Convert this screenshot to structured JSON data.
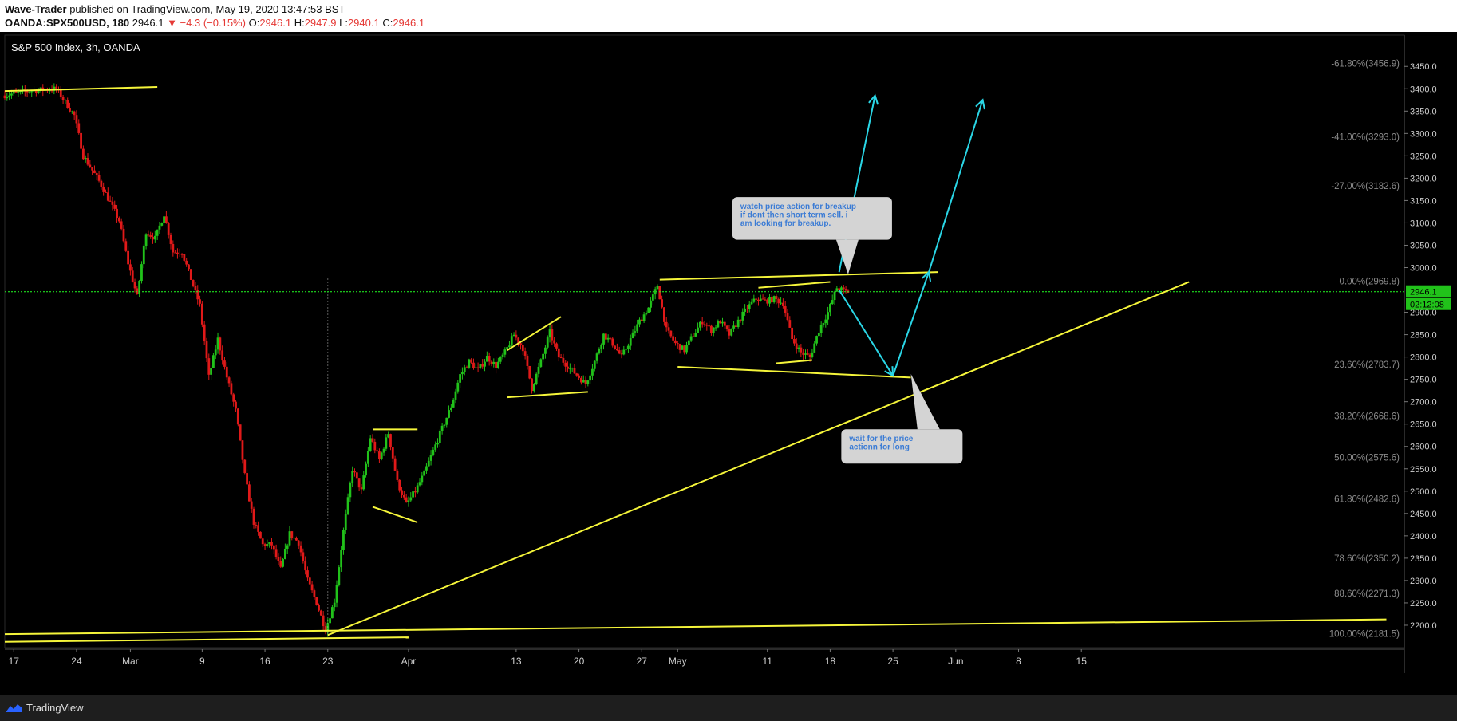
{
  "header": {
    "author": "Wave-Trader",
    "published_text": "published on TradingView.com, May 19, 2020 13:47:53 BST",
    "symbol": "OANDA:SPX500USD, 180",
    "last": "2946.1",
    "change": "▼ −4.3 (−0.15%)",
    "o_label": "O:",
    "o": "2946.1",
    "h_label": "H:",
    "h": "2947.9",
    "l_label": "L:",
    "l": "2940.1",
    "c_label": "C:",
    "c": "2946.1"
  },
  "footer": {
    "brand": "TradingView"
  },
  "colors": {
    "up": "#21c21a",
    "down": "#e01919",
    "lines": "#f5f53a",
    "arrows": "#2ad6e6",
    "price": "#22ff22"
  },
  "chart_data": {
    "type": "candlestick",
    "title": "S&P 500 Index, 3h, OANDA",
    "ylim": [
      2150,
      3520
    ],
    "y_ticks": [
      2200,
      2250,
      2300,
      2350,
      2400,
      2450,
      2500,
      2550,
      2600,
      2650,
      2700,
      2750,
      2800,
      2850,
      2900,
      2950,
      3000,
      3050,
      3100,
      3150,
      3200,
      3250,
      3300,
      3350,
      3400,
      3450
    ],
    "y_tick_labels": [
      "2200.0",
      "2250.0",
      "2300.0",
      "2350.0",
      "2400.0",
      "2450.0",
      "2500.0",
      "2550.0",
      "2600.0",
      "2650.0",
      "2700.0",
      "2750.0",
      "2800.0",
      "2850.0",
      "2900.0",
      "2950.0",
      "3000.0",
      "3050.0",
      "3100.0",
      "3150.0",
      "3200.0",
      "3250.0",
      "3300.0",
      "3350.0",
      "3400.0",
      "3450.0"
    ],
    "x_ticks": [
      {
        "label": "17",
        "day": -5
      },
      {
        "label": "24",
        "day": 2
      },
      {
        "label": "Mar",
        "day": 8
      },
      {
        "label": "9",
        "day": 16
      },
      {
        "label": "16",
        "day": 23
      },
      {
        "label": "23",
        "day": 30
      },
      {
        "label": "Apr",
        "day": 39
      },
      {
        "label": "13",
        "day": 51
      },
      {
        "label": "20",
        "day": 58
      },
      {
        "label": "27",
        "day": 65
      },
      {
        "label": "May",
        "day": 69
      },
      {
        "label": "11",
        "day": 79
      },
      {
        "label": "18",
        "day": 86
      },
      {
        "label": "25",
        "day": 93
      },
      {
        "label": "Jun",
        "day": 100
      },
      {
        "label": "8",
        "day": 107
      },
      {
        "label": "15",
        "day": 114
      }
    ],
    "price_path": [
      [
        -6,
        3385
      ],
      [
        -3,
        3395
      ],
      [
        0,
        3400
      ],
      [
        2,
        3340
      ],
      [
        3,
        3250
      ],
      [
        5,
        3185
      ],
      [
        7,
        3105
      ],
      [
        8,
        3010
      ],
      [
        9,
        2935
      ],
      [
        10,
        3080
      ],
      [
        11,
        3065
      ],
      [
        12,
        3120
      ],
      [
        13,
        3035
      ],
      [
        14,
        3035
      ],
      [
        15,
        2975
      ],
      [
        16,
        2915
      ],
      [
        17,
        2755
      ],
      [
        18,
        2840
      ],
      [
        19,
        2755
      ],
      [
        20,
        2680
      ],
      [
        21,
        2535
      ],
      [
        22,
        2430
      ],
      [
        23,
        2380
      ],
      [
        24,
        2380
      ],
      [
        25,
        2325
      ],
      [
        26,
        2405
      ],
      [
        27,
        2385
      ],
      [
        28,
        2300
      ],
      [
        29,
        2250
      ],
      [
        30,
        2190
      ],
      [
        31,
        2255
      ],
      [
        32,
        2410
      ],
      [
        33,
        2550
      ],
      [
        34,
        2500
      ],
      [
        35,
        2620
      ],
      [
        36,
        2570
      ],
      [
        37,
        2630
      ],
      [
        38,
        2520
      ],
      [
        39,
        2470
      ],
      [
        40,
        2500
      ],
      [
        41,
        2540
      ],
      [
        43,
        2640
      ],
      [
        44,
        2690
      ],
      [
        45,
        2760
      ],
      [
        46,
        2790
      ],
      [
        47,
        2770
      ],
      [
        48,
        2800
      ],
      [
        49,
        2780
      ],
      [
        50,
        2810
      ],
      [
        51,
        2850
      ],
      [
        52,
        2820
      ],
      [
        53,
        2730
      ],
      [
        54,
        2790
      ],
      [
        55,
        2855
      ],
      [
        56,
        2800
      ],
      [
        57,
        2780
      ],
      [
        58,
        2760
      ],
      [
        59,
        2740
      ],
      [
        60,
        2790
      ],
      [
        61,
        2850
      ],
      [
        62,
        2830
      ],
      [
        63,
        2800
      ],
      [
        64,
        2840
      ],
      [
        65,
        2880
      ],
      [
        66,
        2910
      ],
      [
        67,
        2960
      ],
      [
        68,
        2860
      ],
      [
        69,
        2830
      ],
      [
        70,
        2815
      ],
      [
        71,
        2850
      ],
      [
        72,
        2880
      ],
      [
        73,
        2860
      ],
      [
        74,
        2880
      ],
      [
        75,
        2850
      ],
      [
        76,
        2880
      ],
      [
        77,
        2910
      ],
      [
        78,
        2930
      ],
      [
        79,
        2925
      ],
      [
        80,
        2930
      ],
      [
        81,
        2920
      ],
      [
        82,
        2840
      ],
      [
        83,
        2810
      ],
      [
        84,
        2800
      ],
      [
        85,
        2860
      ],
      [
        86,
        2900
      ],
      [
        87,
        2955
      ],
      [
        88,
        2946.1
      ]
    ],
    "drawings": {
      "lines": [
        {
          "from": [
            -6,
            3395
          ],
          "to": [
            11,
            3404
          ]
        },
        {
          "from": [
            -6,
            2180
          ],
          "to": [
            148,
            2213
          ]
        },
        {
          "from": [
            -6,
            2163
          ],
          "to": [
            39,
            2173
          ]
        },
        {
          "from": [
            30,
            2178
          ],
          "to": [
            126,
            2968
          ]
        },
        {
          "from": [
            35,
            2638
          ],
          "to": [
            40,
            2638
          ]
        },
        {
          "from": [
            35,
            2465
          ],
          "to": [
            40,
            2430
          ]
        },
        {
          "from": [
            50,
            2815
          ],
          "to": [
            56,
            2890
          ]
        },
        {
          "from": [
            50,
            2710
          ],
          "to": [
            59,
            2722
          ]
        },
        {
          "from": [
            67,
            2973
          ],
          "to": [
            98,
            2990
          ]
        },
        {
          "from": [
            69,
            2778
          ],
          "to": [
            95,
            2754
          ]
        },
        {
          "from": [
            78,
            2955
          ],
          "to": [
            86,
            2968
          ]
        },
        {
          "from": [
            80,
            2786
          ],
          "to": [
            84,
            2793
          ]
        }
      ],
      "arrows": [
        {
          "from": [
            87,
            2990
          ],
          "to": [
            91,
            3385
          ]
        },
        {
          "from": [
            87,
            2950
          ],
          "to": [
            93,
            2758
          ]
        },
        {
          "from": [
            93,
            2758
          ],
          "to": [
            97,
            2990
          ]
        },
        {
          "from": [
            97,
            2990
          ],
          "to": [
            103,
            3375
          ]
        }
      ],
      "crosshair_day": 30,
      "crosshair_from": 2180,
      "crosshair_to": 2975
    },
    "fib_levels": [
      {
        "label": "-61.80%(3456.9)",
        "value": 3456.9
      },
      {
        "label": "-41.00%(3293.0)",
        "value": 3293.0
      },
      {
        "label": "-27.00%(3182.6)",
        "value": 3182.6
      },
      {
        "label": "0.00%(2969.8)",
        "value": 2969.8
      },
      {
        "label": "23.60%(2783.7)",
        "value": 2783.7
      },
      {
        "label": "38.20%(2668.6)",
        "value": 2668.6
      },
      {
        "label": "50.00%(2575.6)",
        "value": 2575.6
      },
      {
        "label": "61.80%(2482.6)",
        "value": 2482.6
      },
      {
        "label": "78.60%(2350.2)",
        "value": 2350.2
      },
      {
        "label": "88.60%(2271.3)",
        "value": 2271.3
      },
      {
        "label": "100.00%(2181.5)",
        "value": 2181.5
      }
    ],
    "last_price": {
      "value": 2946.1,
      "label": "2946.1",
      "countdown": "02:12:08"
    },
    "annotations": [
      {
        "text": "watch price action for breakup\nif dont then short term sell. i\nam looking for breakup.",
        "anchor_day": 84,
        "anchor_price": 3110,
        "pointer_day": 88,
        "pointer_price": 2985
      },
      {
        "text": "wait for the price\nactionn for long",
        "anchor_day": 94,
        "anchor_price": 2600,
        "pointer_day": 95,
        "pointer_price": 2762
      }
    ]
  }
}
